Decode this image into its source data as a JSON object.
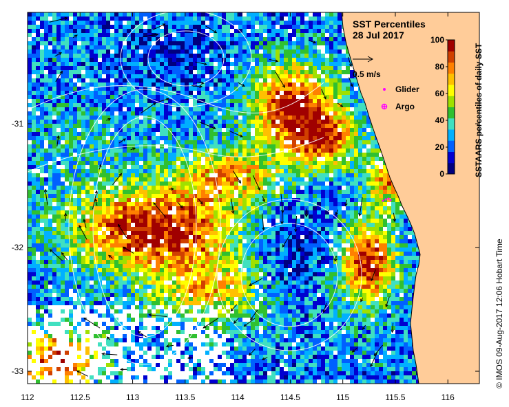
{
  "map": {
    "title": "SST Percentiles",
    "date": "28 Jul 2017",
    "x_ticks": [
      "112",
      "112.5",
      "113",
      "113.5",
      "114",
      "114.5",
      "115",
      "115.5",
      "116"
    ],
    "y_ticks": [
      "-31",
      "-32",
      "-33"
    ],
    "vector_scale_label": "0.5 m/s",
    "legend": {
      "glider_label": "Glider",
      "argo_label": "Argo",
      "glider_color": "#ff00ff",
      "argo_color": "#ff00ff"
    },
    "colorbar": {
      "title": "SSTAARS percentiles of daily SST",
      "ticks": [
        "0",
        "20",
        "40",
        "60",
        "80",
        "100"
      ],
      "colors": [
        "#00007f",
        "#0000d0",
        "#0060ff",
        "#00b0ff",
        "#40e0c0",
        "#30c030",
        "#a0e000",
        "#ffff00",
        "#ffc000",
        "#ff8000",
        "#d04000",
        "#a00000"
      ]
    },
    "credit": "© IMOS 09-Aug-2017 12:06 Hobart Time",
    "land_color": "#ffcc99"
  }
}
